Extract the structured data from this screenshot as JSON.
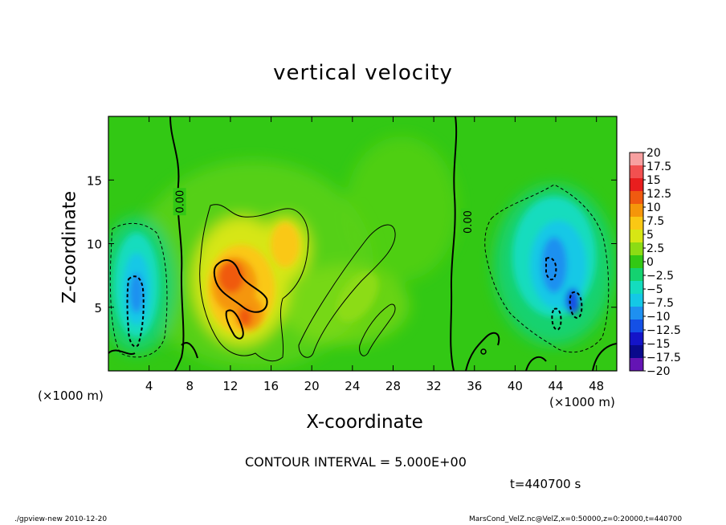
{
  "chart_data": {
    "type": "heatmap",
    "title": "vertical velocity",
    "xlabel": "X-coordinate",
    "ylabel": "Z-coordinate",
    "x_unit": "(×1000 m)",
    "y_unit": "(×1000 m)",
    "xlim": [
      0,
      50
    ],
    "ylim": [
      0,
      20
    ],
    "x_ticks": [
      4,
      8,
      12,
      16,
      20,
      24,
      28,
      32,
      36,
      40,
      44,
      48
    ],
    "y_ticks": [
      5,
      10,
      15
    ],
    "colorbar": {
      "labels": [
        "20",
        "17.5",
        "15",
        "12.5",
        "10",
        "7.5",
        "5",
        "2.5",
        "0",
        "−2.5",
        "−5",
        "−7.5",
        "−10",
        "−12.5",
        "−15",
        "−17.5",
        "−20"
      ],
      "colors": [
        "#f7a0a0",
        "#f25050",
        "#e81e1e",
        "#f05a10",
        "#f5960a",
        "#fac814",
        "#d7e614",
        "#8cdc14",
        "#32c814",
        "#14d270",
        "#14dcbe",
        "#14c8e6",
        "#1e90f0",
        "#1450e6",
        "#1414c8",
        "#0a0a8c",
        "#6414b4"
      ]
    },
    "contour_labels": [
      {
        "text": "0.00",
        "x": 7.0,
        "z": 13.3
      },
      {
        "text": "0.00",
        "x": 35.3,
        "z": 11.7
      }
    ],
    "features": [
      {
        "kind": "updraft",
        "x_center": 12.5,
        "z_center": 6.5,
        "peak": 12.5
      },
      {
        "kind": "updraft",
        "x_center": 17.0,
        "z_center": 9.5,
        "peak": 7.5
      },
      {
        "kind": "downdraft",
        "x_center": 2.8,
        "z_center": 6.0,
        "peak": -7.5
      },
      {
        "kind": "downdraft",
        "x_center": 44.0,
        "z_center": 7.5,
        "peak": -10
      }
    ]
  },
  "text": {
    "contour_interval": "CONTOUR INTERVAL = 5.000E+00",
    "time": "t=440700 s",
    "footer_left": "./gpview-new   2010-12-20",
    "footer_right": "MarsCond_VelZ.nc@VelZ,x=0:50000,z=0:20000,t=440700"
  }
}
